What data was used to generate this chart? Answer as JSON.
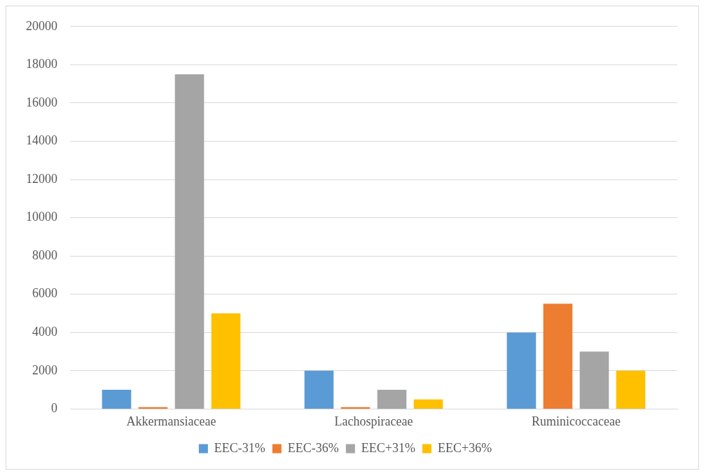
{
  "chart_data": {
    "type": "bar",
    "categories": [
      "Akkermansiaceae",
      "Lachospiraceae",
      "Ruminicoccaceae"
    ],
    "series": [
      {
        "name": "EEC-31%",
        "color": "#5b9bd5",
        "values": [
          1000,
          2000,
          4000
        ]
      },
      {
        "name": "EEC-36%",
        "color": "#ed7d31",
        "values": [
          100,
          100,
          5500
        ]
      },
      {
        "name": "EEC+31%",
        "color": "#a5a5a5",
        "values": [
          17500,
          1000,
          3000
        ]
      },
      {
        "name": "EEC+36%",
        "color": "#ffc000",
        "values": [
          5000,
          500,
          2000
        ]
      }
    ],
    "ylim": [
      0,
      20000
    ],
    "yticks": [
      0,
      2000,
      4000,
      6000,
      8000,
      10000,
      12000,
      14000,
      16000,
      18000,
      20000
    ],
    "grid": "y",
    "legend": "bottom"
  }
}
